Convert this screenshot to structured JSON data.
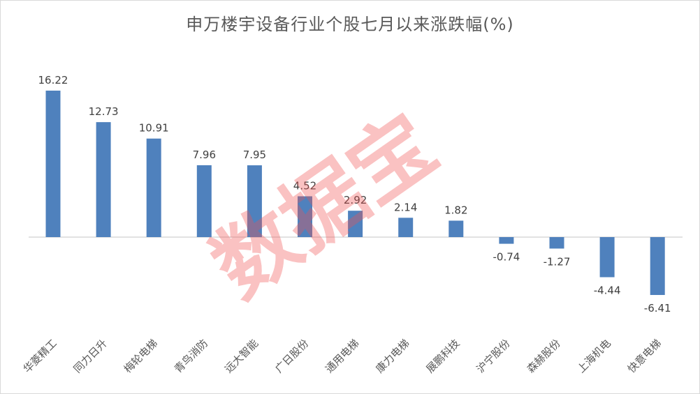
{
  "chart_data": {
    "type": "bar",
    "title": "申万楼宇设备行业个股七月以来涨跌幅(%)",
    "categories": [
      "华菱精工",
      "同力日升",
      "梅轮电梯",
      "青鸟消防",
      "远大智能",
      "广日股份",
      "通用电梯",
      "康力电梯",
      "展鹏科技",
      "沪宁股份",
      "森赫股份",
      "上海机电",
      "快意电梯"
    ],
    "values": [
      16.22,
      12.73,
      10.91,
      7.96,
      7.95,
      4.52,
      2.92,
      2.14,
      1.82,
      -0.74,
      -1.27,
      -4.44,
      -6.41
    ],
    "data_labels": [
      "16.22",
      "12.73",
      "10.91",
      "7.96",
      "7.95",
      "4.52",
      "2.92",
      "2.14",
      "1.82",
      "-0.74",
      "-1.27",
      "-4.44",
      "-6.41"
    ],
    "bar_color": "#4f81bd",
    "axis_color": "#d9d9d9",
    "grid": false,
    "legend": "none"
  },
  "watermark": "数据宝"
}
